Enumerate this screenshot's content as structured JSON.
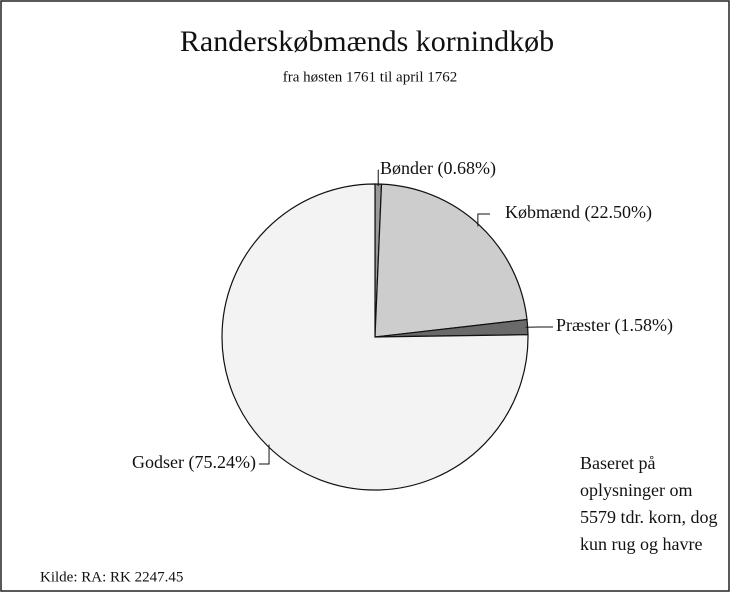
{
  "chart_data": {
    "type": "pie",
    "title": "Randerskøbmænds kornindkøb",
    "subtitle": "fra høsten 1761 til april 1762",
    "values": [
      0.68,
      22.5,
      1.58,
      75.24
    ],
    "value_labels": [
      "Bønder (0.68%)",
      "Købmænd (22.50%)",
      "Præster (1.58%)",
      "Godser (75.24%)"
    ],
    "colors": [
      "#9a9a9a",
      "#cdcdcd",
      "#6a6a6a",
      "#f3f3f3"
    ],
    "note": [
      "Baseret på",
      "oplysninger om",
      "5579 tdr. korn, dog",
      "kun rug og havre"
    ],
    "source": "Kilde: RA: RK 2247.45"
  }
}
